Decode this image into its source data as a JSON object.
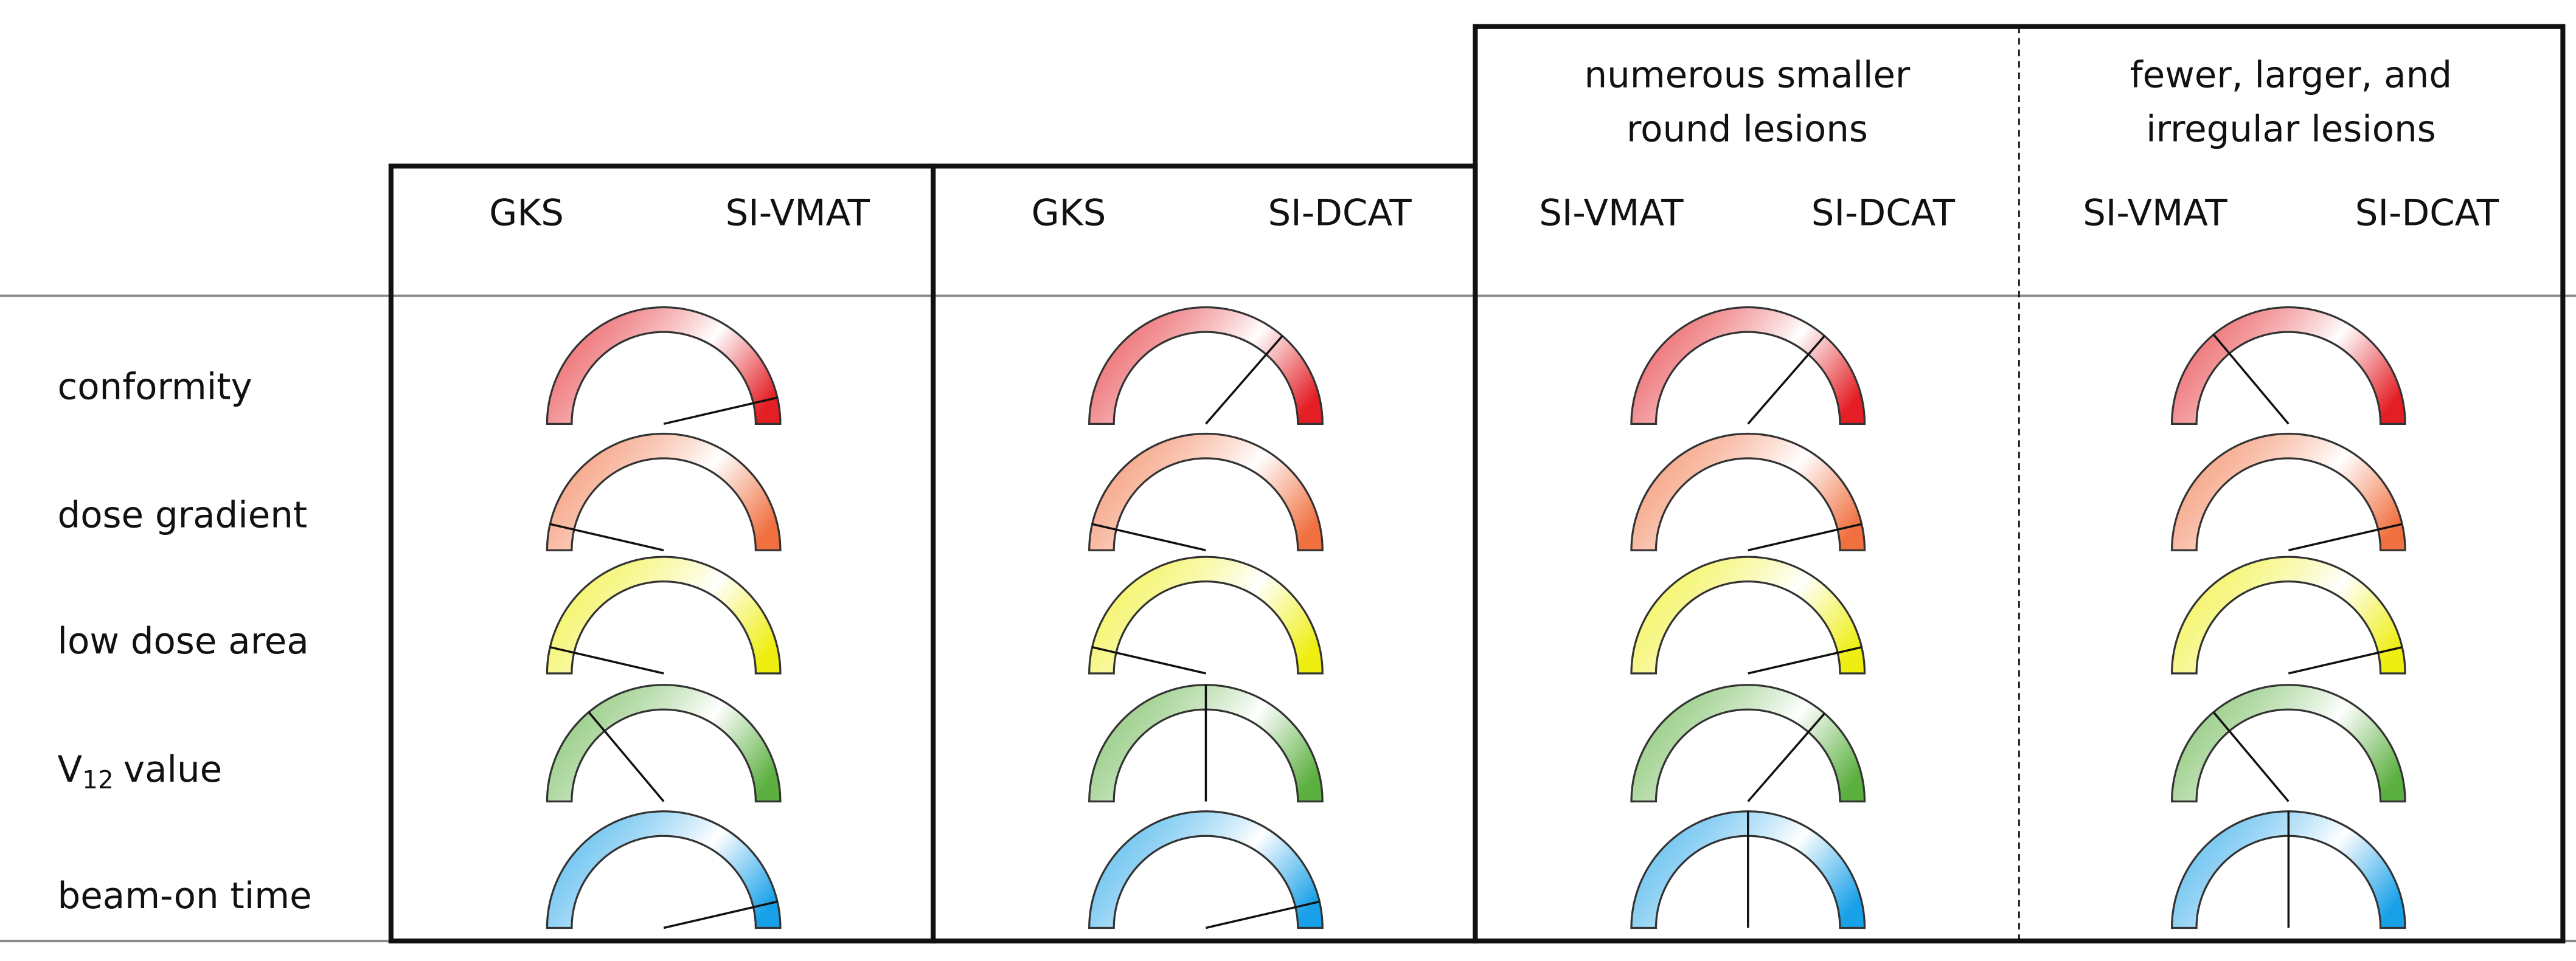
{
  "columns": [
    {
      "methods": [
        "GKS",
        "SI-VMAT"
      ]
    },
    {
      "methods": [
        "GKS",
        "SI-DCAT"
      ]
    },
    {
      "group": [
        "numerous smaller",
        "round lesions"
      ],
      "methods": [
        "SI-VMAT",
        "SI-DCAT"
      ]
    },
    {
      "group": [
        "fewer, larger, and",
        "irregular lesions"
      ],
      "methods": [
        "SI-VMAT",
        "SI-DCAT"
      ]
    }
  ],
  "rows": [
    {
      "label": "conformity",
      "color": "#e31e24",
      "needle_deg": [
        167,
        131,
        131,
        50
      ]
    },
    {
      "label": "dose gradient",
      "color": "#f07040",
      "needle_deg": [
        13,
        13,
        167,
        167
      ]
    },
    {
      "label": "low dose area",
      "color": "#eeee10",
      "needle_deg": [
        13,
        13,
        167,
        167
      ]
    },
    {
      "label": "V",
      "subscript": "12",
      "suffix": "value",
      "color": "#5cb040",
      "needle_deg": [
        50,
        90,
        131,
        50
      ]
    },
    {
      "label": "beam-on time",
      "color": "#18a0e8",
      "needle_deg": [
        167,
        167,
        90,
        90
      ]
    }
  ]
}
